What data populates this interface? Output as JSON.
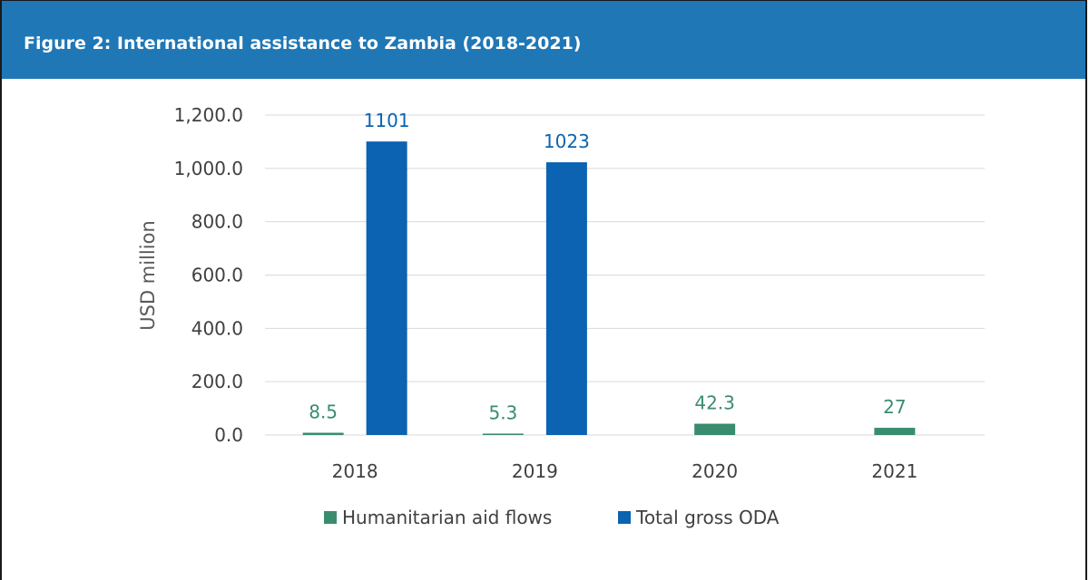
{
  "figure": {
    "title": "Figure 2: International assistance to Zambia (2018-2021)"
  },
  "colors": {
    "header_bg": "#1f77b6",
    "humanitarian": "#3a8c6e",
    "oda": "#0b63b1",
    "grid": "#d9d9d9",
    "axis_text": "#404040"
  },
  "chart_data": {
    "type": "bar",
    "title": "",
    "xlabel": "",
    "ylabel": "USD million",
    "ylim": [
      0,
      1200
    ],
    "yticks": [
      "0.0",
      "200.0",
      "400.0",
      "600.0",
      "800.0",
      "1,000.0",
      "1,200.0"
    ],
    "ytick_values": [
      0,
      200,
      400,
      600,
      800,
      1000,
      1200
    ],
    "categories": [
      "2018",
      "2019",
      "2020",
      "2021"
    ],
    "grid": true,
    "legend_position": "bottom",
    "series": [
      {
        "name": "Humanitarian aid flows",
        "values": [
          8.5,
          5.3,
          42.3,
          27
        ],
        "labels": [
          "8.5",
          "5.3",
          "42.3",
          "27"
        ]
      },
      {
        "name": "Total gross ODA",
        "values": [
          1101,
          1023,
          null,
          null
        ],
        "labels": [
          "1101",
          "1023",
          "",
          ""
        ]
      }
    ]
  }
}
